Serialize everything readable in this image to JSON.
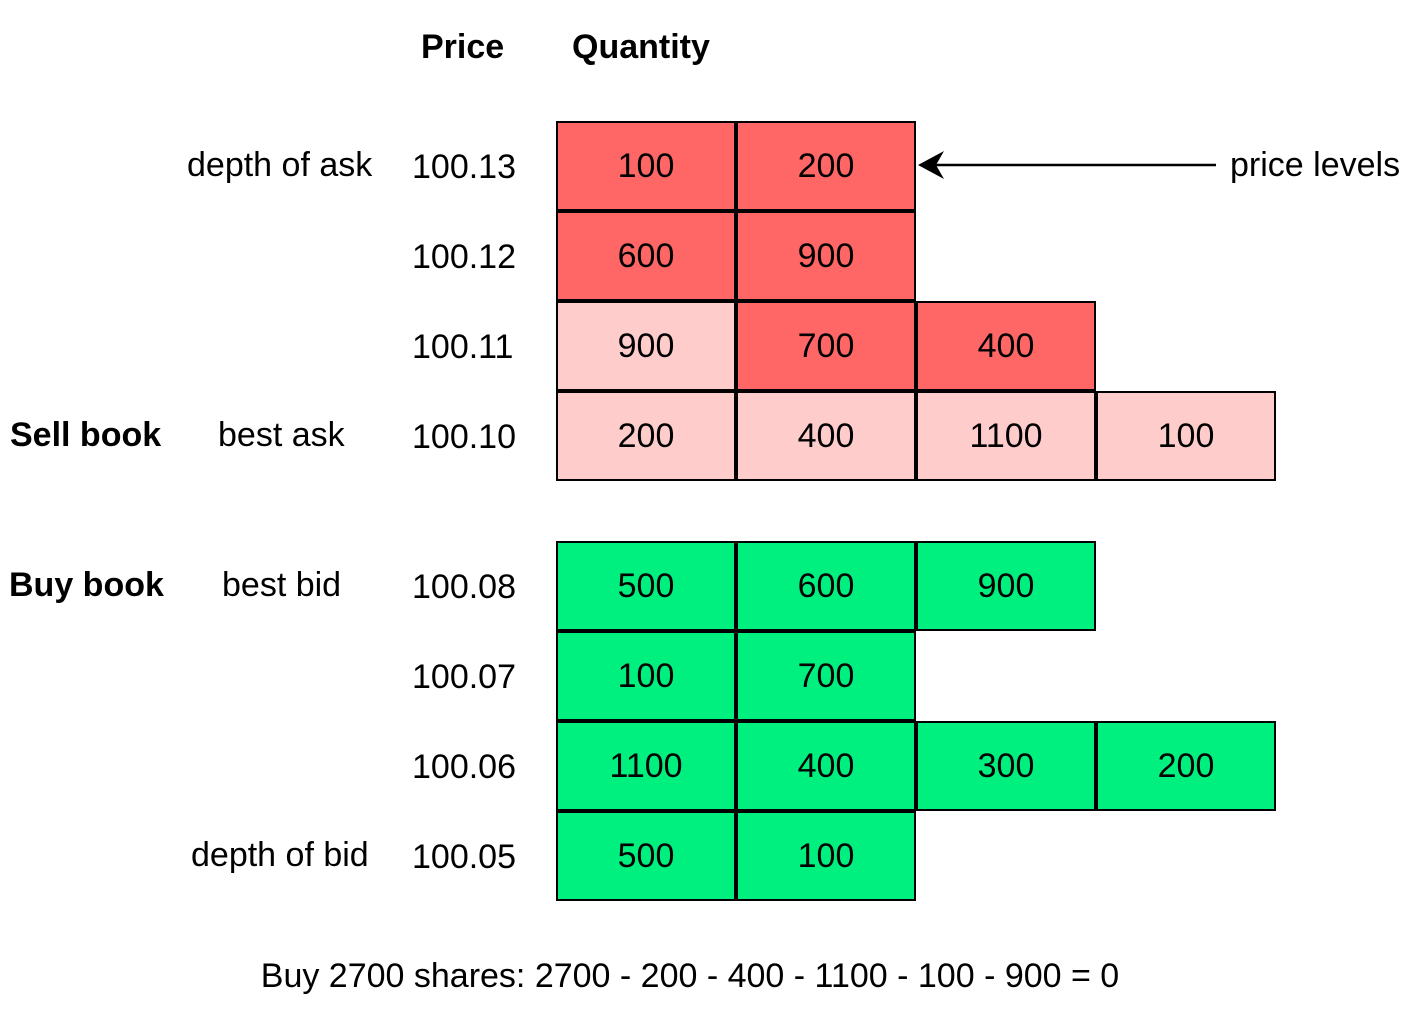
{
  "headers": {
    "price": "Price",
    "quantity": "Quantity"
  },
  "labels": {
    "sell_book": "Sell book",
    "buy_book": "Buy book",
    "depth_of_ask": "depth of ask",
    "best_ask": "best ask",
    "best_bid": "best bid",
    "depth_of_bid": "depth of bid",
    "price_levels": "price levels"
  },
  "colors": {
    "ask_dark": "#ff6666",
    "ask_light": "#ffcccc",
    "bid": "#00f07f"
  },
  "sell_book": [
    {
      "price": "100.13",
      "quantities": [
        "100",
        "200"
      ],
      "shades": [
        "dark",
        "dark"
      ]
    },
    {
      "price": "100.12",
      "quantities": [
        "600",
        "900"
      ],
      "shades": [
        "dark",
        "dark"
      ]
    },
    {
      "price": "100.11",
      "quantities": [
        "900",
        "700",
        "400"
      ],
      "shades": [
        "light",
        "dark",
        "dark"
      ]
    },
    {
      "price": "100.10",
      "quantities": [
        "200",
        "400",
        "1100",
        "100"
      ],
      "shades": [
        "light",
        "light",
        "light",
        "light"
      ]
    }
  ],
  "buy_book": [
    {
      "price": "100.08",
      "quantities": [
        "500",
        "600",
        "900"
      ]
    },
    {
      "price": "100.07",
      "quantities": [
        "100",
        "700"
      ]
    },
    {
      "price": "100.06",
      "quantities": [
        "1100",
        "400",
        "300",
        "200"
      ]
    },
    {
      "price": "100.05",
      "quantities": [
        "500",
        "100"
      ]
    }
  ],
  "footer": "Buy 2700 shares: 2700 - 200 - 400 - 1100 - 100 - 900 = 0"
}
